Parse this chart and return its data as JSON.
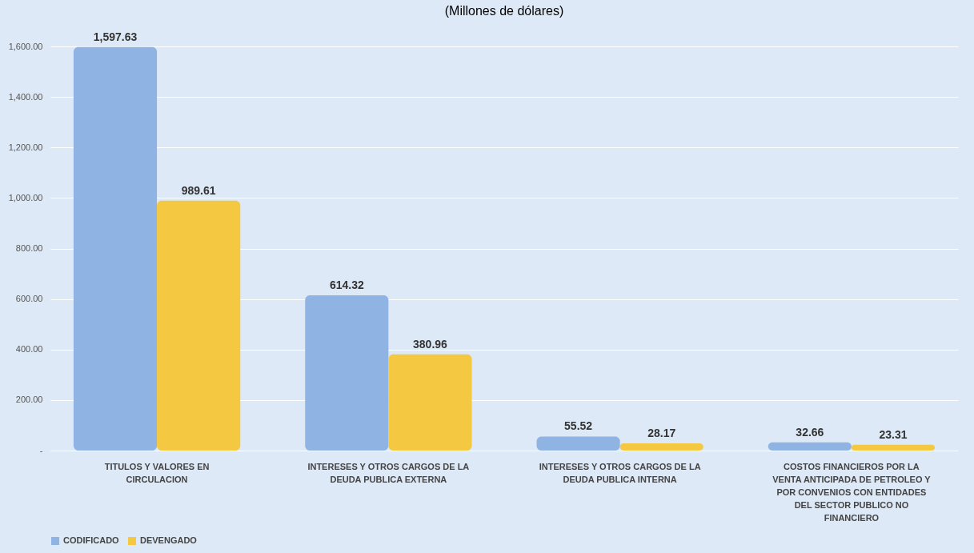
{
  "chart_data": {
    "type": "bar",
    "subtitle": "(Millones de dólares)",
    "categories": [
      "TITULOS Y VALORES EN CIRCULACION",
      "INTERESES Y OTROS CARGOS DE LA DEUDA PUBLICA EXTERNA",
      "INTERESES Y OTROS CARGOS DE LA DEUDA PUBLICA INTERNA",
      "COSTOS FINANCIEROS POR LA VENTA ANTICIPADA DE PETROLEO Y POR CONVENIOS CON ENTIDADES DEL SECTOR PUBLICO NO FINANCIERO"
    ],
    "series": [
      {
        "name": "CODIFICADO",
        "color": "#8fb4e3",
        "values": [
          1597.63,
          614.32,
          55.52,
          32.66
        ],
        "value_labels": [
          "1,597.63",
          "614.32",
          "55.52",
          "32.66"
        ]
      },
      {
        "name": "DEVENGADO",
        "color": "#f5c842",
        "values": [
          989.61,
          380.96,
          28.17,
          23.31
        ],
        "value_labels": [
          "989.61",
          "380.96",
          "28.17",
          "23.31"
        ]
      }
    ],
    "ylim": [
      0,
      1600
    ],
    "yticks": [
      {
        "value": 0,
        "label": "-"
      },
      {
        "value": 200,
        "label": "200.00"
      },
      {
        "value": 400,
        "label": "400.00"
      },
      {
        "value": 600,
        "label": "600.00"
      },
      {
        "value": 800,
        "label": "800.00"
      },
      {
        "value": 1000,
        "label": "1,000.00"
      },
      {
        "value": 1200,
        "label": "1,200.00"
      },
      {
        "value": 1400,
        "label": "1,400.00"
      },
      {
        "value": 1600,
        "label": "1,600.00"
      }
    ],
    "grid": "y",
    "legend": "bottom"
  }
}
